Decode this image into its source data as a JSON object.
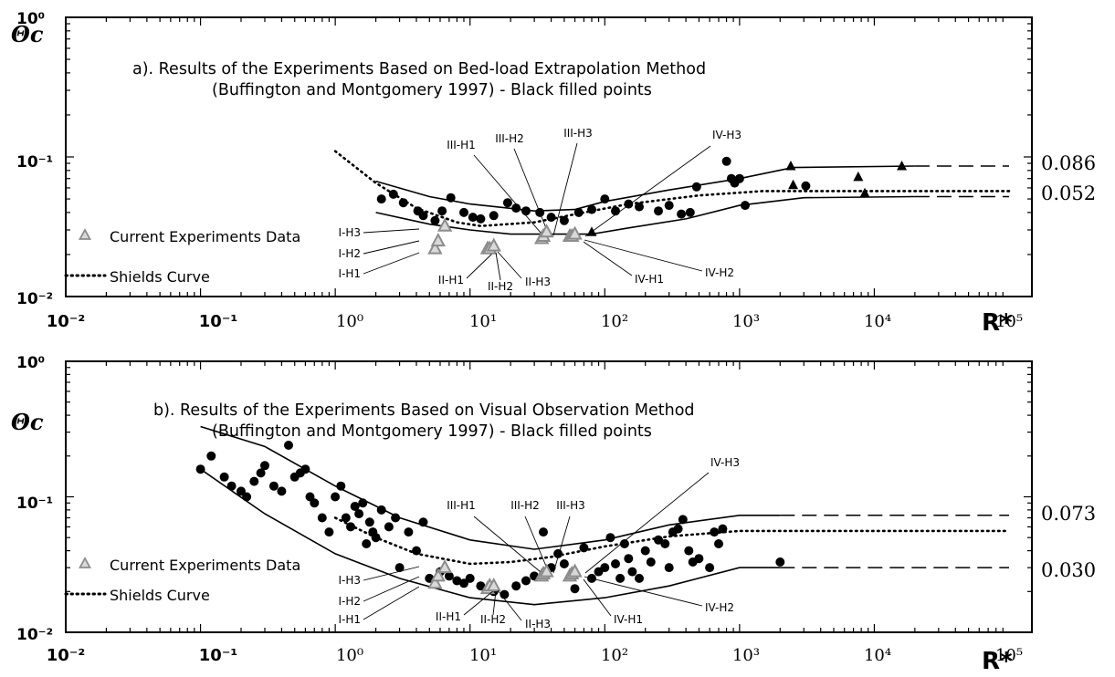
{
  "chart_data": [
    {
      "panel": "a",
      "type": "scatter",
      "title_line1": "a). Results of the Experiments Based on Bed-load Extrapolation Method",
      "title_line2": "(Buffington and Montgomery 1997) - Black filled points",
      "ylabel": "Θc",
      "xlabel": "R*",
      "xscale": "log",
      "yscale": "log",
      "xlim": [
        0.01,
        100000
      ],
      "ylim": [
        0.01,
        1
      ],
      "x_tick_labels": [
        "10⁻²",
        "10⁻¹",
        "10⁰",
        "10¹",
        "10²",
        "10³",
        "10⁴",
        "10⁵"
      ],
      "y_tick_labels": [
        "10⁰",
        "10⁻¹",
        "10⁻²"
      ],
      "legend": {
        "triangle_label": "Current Experiments Data",
        "dotted_label": "Shields Curve"
      },
      "right_values": [
        "0.086",
        "0.052"
      ],
      "upper_envelope": [
        [
          2,
          0.067
        ],
        [
          5,
          0.052
        ],
        [
          10,
          0.046
        ],
        [
          30,
          0.041
        ],
        [
          60,
          0.042
        ],
        [
          100,
          0.048
        ],
        [
          300,
          0.058
        ],
        [
          1000,
          0.07
        ],
        [
          2500,
          0.084
        ],
        [
          20000,
          0.086
        ]
      ],
      "lower_envelope": [
        [
          2,
          0.04
        ],
        [
          5,
          0.033
        ],
        [
          10,
          0.03
        ],
        [
          20,
          0.028
        ],
        [
          40,
          0.028
        ],
        [
          80,
          0.028
        ],
        [
          150,
          0.031
        ],
        [
          400,
          0.036
        ],
        [
          1000,
          0.045
        ],
        [
          3000,
          0.051
        ],
        [
          20000,
          0.052
        ]
      ],
      "upper_dashed": [
        [
          20000,
          0.086
        ],
        [
          100000,
          0.086
        ]
      ],
      "lower_dashed": [
        [
          20000,
          0.052
        ],
        [
          100000,
          0.052
        ]
      ],
      "shields_curve": [
        [
          1,
          0.11
        ],
        [
          2,
          0.065
        ],
        [
          4,
          0.043
        ],
        [
          8,
          0.034
        ],
        [
          12,
          0.032
        ],
        [
          30,
          0.034
        ],
        [
          70,
          0.04
        ],
        [
          150,
          0.046
        ],
        [
          500,
          0.053
        ],
        [
          1500,
          0.057
        ],
        [
          100000,
          0.057
        ]
      ],
      "black_circles": [
        [
          2.2,
          0.05
        ],
        [
          2.7,
          0.054
        ],
        [
          3.2,
          0.047
        ],
        [
          4.1,
          0.041
        ],
        [
          4.5,
          0.038
        ],
        [
          5.5,
          0.035
        ],
        [
          6.2,
          0.041
        ],
        [
          7.2,
          0.051
        ],
        [
          9,
          0.04
        ],
        [
          10.5,
          0.037
        ],
        [
          12,
          0.036
        ],
        [
          14,
          0.022
        ],
        [
          15,
          0.038
        ],
        [
          19,
          0.047
        ],
        [
          22,
          0.043
        ],
        [
          26,
          0.041
        ],
        [
          33,
          0.04
        ],
        [
          40,
          0.037
        ],
        [
          50,
          0.035
        ],
        [
          64,
          0.04
        ],
        [
          80,
          0.042
        ],
        [
          100,
          0.05
        ],
        [
          120,
          0.041
        ],
        [
          150,
          0.046
        ],
        [
          180,
          0.044
        ],
        [
          250,
          0.041
        ],
        [
          300,
          0.045
        ],
        [
          370,
          0.039
        ],
        [
          430,
          0.04
        ],
        [
          480,
          0.061
        ],
        [
          800,
          0.093
        ],
        [
          870,
          0.07
        ],
        [
          920,
          0.065
        ],
        [
          1000,
          0.07
        ],
        [
          1100,
          0.045
        ],
        [
          3100,
          0.062
        ]
      ],
      "black_triangles": [
        [
          80,
          0.029
        ],
        [
          2400,
          0.086
        ],
        [
          2500,
          0.063
        ],
        [
          7600,
          0.072
        ],
        [
          8500,
          0.055
        ],
        [
          16000,
          0.086
        ]
      ],
      "current_points": [
        {
          "label": "I-H1",
          "x": 5.5,
          "y": 0.022
        },
        {
          "label": "I-H2",
          "x": 5.8,
          "y": 0.025
        },
        {
          "label": "I-H3",
          "x": 6.5,
          "y": 0.032
        },
        {
          "label": "II-H1",
          "x": 13.5,
          "y": 0.022
        },
        {
          "label": "II-H2",
          "x": 14,
          "y": 0.022
        },
        {
          "label": "II-H3",
          "x": 15,
          "y": 0.023
        },
        {
          "label": "III-H1",
          "x": 34,
          "y": 0.026
        },
        {
          "label": "III-H2",
          "x": 35,
          "y": 0.027
        },
        {
          "label": "III-H3",
          "x": 37,
          "y": 0.029
        },
        {
          "label": "IV-H1",
          "x": 55,
          "y": 0.027
        },
        {
          "label": "IV-H2",
          "x": 57,
          "y": 0.027
        },
        {
          "label": "IV-H3",
          "x": 60,
          "y": 0.028
        }
      ]
    },
    {
      "panel": "b",
      "type": "scatter",
      "title_line1": "b). Results of the Experiments Based on Visual Observation Method",
      "title_line2": "(Buffington and Montgomery 1997) - Black filled points",
      "ylabel": "Θc",
      "xlabel": "R*",
      "xscale": "log",
      "yscale": "log",
      "xlim": [
        0.01,
        100000
      ],
      "ylim": [
        0.01,
        1
      ],
      "x_tick_labels": [
        "10⁻²",
        "10⁻¹",
        "10⁰",
        "10¹",
        "10²",
        "10³",
        "10⁴",
        "10⁵"
      ],
      "y_tick_labels": [
        "10⁰",
        "10⁻¹",
        "10⁻²"
      ],
      "legend": {
        "triangle_label": "Current Experiments Data",
        "dotted_label": "Shields Curve"
      },
      "right_values": [
        "0.073",
        "0.030"
      ],
      "upper_envelope": [
        [
          0.1,
          0.33
        ],
        [
          0.3,
          0.235
        ],
        [
          1,
          0.12
        ],
        [
          3,
          0.07
        ],
        [
          10,
          0.048
        ],
        [
          30,
          0.041
        ],
        [
          100,
          0.048
        ],
        [
          300,
          0.062
        ],
        [
          1000,
          0.073
        ],
        [
          2000,
          0.073
        ]
      ],
      "lower_envelope": [
        [
          0.1,
          0.16
        ],
        [
          0.3,
          0.075
        ],
        [
          1,
          0.038
        ],
        [
          3,
          0.025
        ],
        [
          10,
          0.018
        ],
        [
          30,
          0.016
        ],
        [
          100,
          0.018
        ],
        [
          300,
          0.022
        ],
        [
          1000,
          0.03
        ],
        [
          2000,
          0.03
        ]
      ],
      "upper_dashed": [
        [
          2000,
          0.073
        ],
        [
          100000,
          0.073
        ]
      ],
      "lower_dashed": [
        [
          2000,
          0.03
        ],
        [
          100000,
          0.03
        ]
      ],
      "shields_curve": [
        [
          1,
          0.07
        ],
        [
          2,
          0.05
        ],
        [
          4,
          0.038
        ],
        [
          10,
          0.032
        ],
        [
          20,
          0.033
        ],
        [
          40,
          0.036
        ],
        [
          100,
          0.043
        ],
        [
          300,
          0.051
        ],
        [
          1000,
          0.056
        ],
        [
          100000,
          0.056
        ]
      ],
      "black_circles": [
        [
          0.1,
          0.16
        ],
        [
          0.12,
          0.2
        ],
        [
          0.15,
          0.14
        ],
        [
          0.17,
          0.12
        ],
        [
          0.2,
          0.11
        ],
        [
          0.22,
          0.1
        ],
        [
          0.25,
          0.13
        ],
        [
          0.28,
          0.15
        ],
        [
          0.3,
          0.17
        ],
        [
          0.35,
          0.12
        ],
        [
          0.4,
          0.11
        ],
        [
          0.45,
          0.24
        ],
        [
          0.5,
          0.14
        ],
        [
          0.55,
          0.15
        ],
        [
          0.6,
          0.16
        ],
        [
          0.65,
          0.1
        ],
        [
          0.7,
          0.09
        ],
        [
          0.8,
          0.07
        ],
        [
          0.9,
          0.055
        ],
        [
          1,
          0.1
        ],
        [
          1.1,
          0.12
        ],
        [
          1.2,
          0.07
        ],
        [
          1.3,
          0.06
        ],
        [
          1.4,
          0.085
        ],
        [
          1.5,
          0.075
        ],
        [
          1.6,
          0.09
        ],
        [
          1.7,
          0.045
        ],
        [
          1.8,
          0.065
        ],
        [
          1.9,
          0.055
        ],
        [
          2,
          0.05
        ],
        [
          2.2,
          0.08
        ],
        [
          2.5,
          0.06
        ],
        [
          2.8,
          0.07
        ],
        [
          3,
          0.03
        ],
        [
          3.5,
          0.055
        ],
        [
          4,
          0.04
        ],
        [
          4.5,
          0.065
        ],
        [
          5,
          0.025
        ],
        [
          6,
          0.028
        ],
        [
          7,
          0.026
        ],
        [
          8,
          0.024
        ],
        [
          9,
          0.023
        ],
        [
          10,
          0.025
        ],
        [
          12,
          0.022
        ],
        [
          15,
          0.02
        ],
        [
          18,
          0.019
        ],
        [
          22,
          0.022
        ],
        [
          26,
          0.024
        ],
        [
          30,
          0.026
        ],
        [
          35,
          0.055
        ],
        [
          40,
          0.03
        ],
        [
          45,
          0.038
        ],
        [
          50,
          0.032
        ],
        [
          60,
          0.021
        ],
        [
          70,
          0.042
        ],
        [
          80,
          0.025
        ],
        [
          90,
          0.028
        ],
        [
          100,
          0.03
        ],
        [
          110,
          0.05
        ],
        [
          120,
          0.032
        ],
        [
          130,
          0.025
        ],
        [
          140,
          0.045
        ],
        [
          150,
          0.035
        ],
        [
          160,
          0.028
        ],
        [
          180,
          0.025
        ],
        [
          200,
          0.04
        ],
        [
          220,
          0.033
        ],
        [
          250,
          0.048
        ],
        [
          280,
          0.045
        ],
        [
          300,
          0.03
        ],
        [
          320,
          0.055
        ],
        [
          350,
          0.058
        ],
        [
          380,
          0.068
        ],
        [
          420,
          0.04
        ],
        [
          450,
          0.033
        ],
        [
          500,
          0.035
        ],
        [
          600,
          0.03
        ],
        [
          650,
          0.055
        ],
        [
          700,
          0.045
        ],
        [
          750,
          0.058
        ],
        [
          2000,
          0.033
        ]
      ],
      "current_points": [
        {
          "label": "I-H1",
          "x": 5.5,
          "y": 0.023
        },
        {
          "label": "I-H2",
          "x": 5.8,
          "y": 0.026
        },
        {
          "label": "I-H3",
          "x": 6.5,
          "y": 0.03
        },
        {
          "label": "II-H1",
          "x": 13.5,
          "y": 0.021
        },
        {
          "label": "II-H2",
          "x": 14,
          "y": 0.022
        },
        {
          "label": "II-H3",
          "x": 15,
          "y": 0.022
        },
        {
          "label": "III-H1",
          "x": 34,
          "y": 0.026
        },
        {
          "label": "III-H2",
          "x": 35,
          "y": 0.027
        },
        {
          "label": "III-H3",
          "x": 37,
          "y": 0.028
        },
        {
          "label": "IV-H1",
          "x": 55,
          "y": 0.026
        },
        {
          "label": "IV-H2",
          "x": 57,
          "y": 0.027
        },
        {
          "label": "IV-H3",
          "x": 60,
          "y": 0.028
        }
      ]
    }
  ]
}
